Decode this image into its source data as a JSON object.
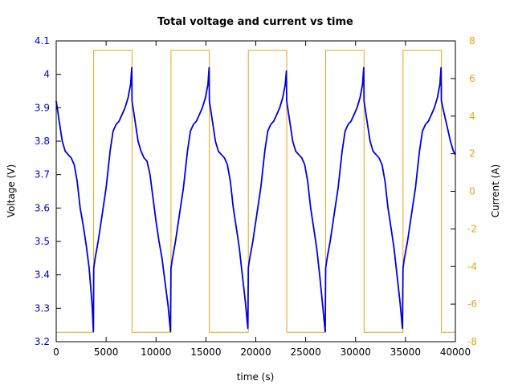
{
  "chart_data": {
    "type": "line",
    "title": "Total voltage and current vs time",
    "xlabel": "time (s)",
    "ylabel": "Voltage (V)",
    "y2label": "Current (A)",
    "xlim": [
      0,
      40000
    ],
    "ylim": [
      3.2,
      4.1
    ],
    "y2lim": [
      -8,
      8
    ],
    "xticks": [
      "0",
      "5000",
      "10000",
      "15000",
      "20000",
      "25000",
      "30000",
      "35000",
      "40000"
    ],
    "yticks": [
      "3.2",
      "3.3",
      "3.4",
      "3.5",
      "3.6",
      "3.7",
      "3.8",
      "3.9",
      "4",
      "4.1"
    ],
    "y2ticks": [
      "-8",
      "-6",
      "-4",
      "-2",
      "0",
      "2",
      "4",
      "6",
      "8"
    ],
    "grid": false,
    "colors": {
      "voltage": "#0000dd",
      "current": "#e8a317",
      "axis_left": "#0000cc",
      "axis_right": "#e8a317"
    },
    "series": [
      {
        "axis": "left",
        "color": "#0000dd",
        "x": [
          0,
          300,
          600,
          900,
          1200,
          1500,
          1800,
          2100,
          2400,
          2700,
          3000,
          3300,
          3600,
          3730,
          3760,
          3900,
          4200,
          4600,
          5000,
          5400,
          5700,
          6000,
          6300,
          6600,
          6900,
          7200,
          7450,
          7570,
          7600,
          7900,
          8200,
          8500,
          8800,
          9100,
          9400,
          9700,
          10000,
          10300,
          10600,
          10900,
          11200,
          11450,
          11500,
          11650,
          11950,
          12350,
          12750,
          13150,
          13450,
          13750,
          14050,
          14350,
          14650,
          14950,
          15200,
          15320,
          15350,
          15650,
          15950,
          16250,
          16550,
          16850,
          17150,
          17450,
          17750,
          18050,
          18350,
          18650,
          18950,
          19200,
          19250,
          19400,
          19700,
          20100,
          20500,
          20900,
          21200,
          21500,
          21800,
          22100,
          22400,
          22700,
          22950,
          23070,
          23100,
          23400,
          23700,
          24000,
          24300,
          24600,
          24900,
          25200,
          25500,
          25800,
          26100,
          26400,
          26700,
          26950,
          27000,
          27150,
          27450,
          27850,
          28250,
          28650,
          28950,
          29250,
          29550,
          29850,
          30150,
          30450,
          30700,
          30820,
          30850,
          31150,
          31450,
          31750,
          32050,
          32350,
          32650,
          32950,
          33250,
          33550,
          33850,
          34150,
          34450,
          34700,
          34750,
          34900,
          35200,
          35600,
          36000,
          36400,
          36700,
          37000,
          37300,
          37600,
          37900,
          38200,
          38450,
          38570,
          38600,
          38900,
          39200,
          39500,
          39800,
          40000
        ],
        "y": [
          3.92,
          3.86,
          3.8,
          3.77,
          3.76,
          3.75,
          3.73,
          3.68,
          3.6,
          3.55,
          3.49,
          3.42,
          3.31,
          3.23,
          3.42,
          3.45,
          3.5,
          3.58,
          3.66,
          3.77,
          3.83,
          3.85,
          3.86,
          3.88,
          3.9,
          3.93,
          3.97,
          4.02,
          3.92,
          3.86,
          3.8,
          3.77,
          3.75,
          3.74,
          3.7,
          3.63,
          3.56,
          3.5,
          3.45,
          3.38,
          3.31,
          3.23,
          3.42,
          3.45,
          3.5,
          3.58,
          3.66,
          3.77,
          3.83,
          3.85,
          3.86,
          3.88,
          3.9,
          3.93,
          3.97,
          4.02,
          3.92,
          3.86,
          3.8,
          3.77,
          3.76,
          3.75,
          3.73,
          3.68,
          3.6,
          3.54,
          3.48,
          3.4,
          3.32,
          3.24,
          3.42,
          3.45,
          3.5,
          3.58,
          3.66,
          3.77,
          3.83,
          3.85,
          3.86,
          3.88,
          3.9,
          3.93,
          3.97,
          4.01,
          3.92,
          3.86,
          3.8,
          3.77,
          3.76,
          3.75,
          3.73,
          3.68,
          3.6,
          3.54,
          3.48,
          3.4,
          3.31,
          3.23,
          3.42,
          3.45,
          3.5,
          3.58,
          3.66,
          3.77,
          3.83,
          3.85,
          3.86,
          3.88,
          3.9,
          3.93,
          3.97,
          4.02,
          3.92,
          3.86,
          3.8,
          3.77,
          3.76,
          3.75,
          3.73,
          3.68,
          3.6,
          3.54,
          3.48,
          3.4,
          3.32,
          3.24,
          3.42,
          3.45,
          3.5,
          3.58,
          3.66,
          3.77,
          3.83,
          3.85,
          3.86,
          3.88,
          3.9,
          3.93,
          3.97,
          4.02,
          3.92,
          3.88,
          3.84,
          3.8,
          3.77,
          3.76
        ]
      },
      {
        "axis": "right",
        "color": "#e8a317",
        "x": [
          0,
          3750,
          3750,
          7600,
          7600,
          11500,
          11500,
          15350,
          15350,
          19250,
          19250,
          23100,
          23100,
          27000,
          27000,
          30850,
          30850,
          34750,
          34750,
          38600,
          38600,
          40000
        ],
        "y": [
          -7.5,
          -7.5,
          7.5,
          7.5,
          -7.5,
          -7.5,
          7.5,
          7.5,
          -7.5,
          -7.5,
          7.5,
          7.5,
          -7.5,
          -7.5,
          7.5,
          7.5,
          -7.5,
          -7.5,
          7.5,
          7.5,
          -7.5,
          -7.5
        ]
      }
    ]
  }
}
